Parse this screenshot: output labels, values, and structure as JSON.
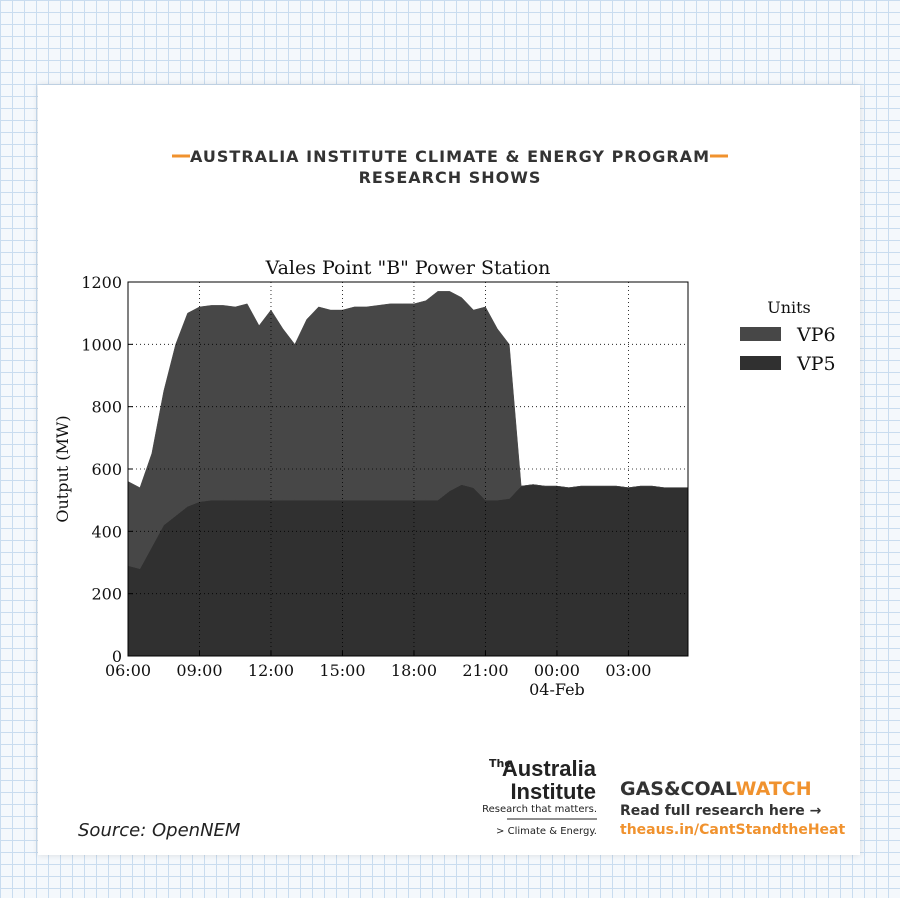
{
  "header": {
    "line1": "AUSTRALIA INSTITUTE CLIMATE & ENERGY PROGRAM",
    "line2": "RESEARCH SHOWS"
  },
  "chart_data": {
    "type": "stacked-area",
    "title": "Vales Point \"B\" Power Station",
    "y_label": "Output (MW)",
    "x": [
      "06:00",
      "06:30",
      "07:00",
      "07:30",
      "08:00",
      "08:30",
      "09:00",
      "09:30",
      "10:00",
      "10:30",
      "11:00",
      "11:30",
      "12:00",
      "12:30",
      "13:00",
      "13:30",
      "14:00",
      "14:30",
      "15:00",
      "15:30",
      "16:00",
      "16:30",
      "17:00",
      "17:30",
      "18:00",
      "18:30",
      "19:00",
      "19:30",
      "20:00",
      "20:30",
      "21:00",
      "21:30",
      "22:00",
      "22:30",
      "23:00",
      "23:30",
      "00:00",
      "00:30",
      "01:00",
      "01:30",
      "02:00",
      "02:30",
      "03:00",
      "03:30",
      "04:00",
      "04:30",
      "05:00",
      "05:30"
    ],
    "xticks": [
      "06:00",
      "09:00",
      "12:00",
      "15:00",
      "18:00",
      "21:00",
      "00:00",
      "03:00"
    ],
    "date_label": "04-Feb",
    "ylim": [
      0,
      1200
    ],
    "yticks": [
      0,
      200,
      400,
      600,
      800,
      1000,
      1200
    ],
    "grid": true,
    "legend_title": "Units",
    "legend": "right",
    "series": [
      {
        "name": "VP6",
        "color": "#474747",
        "values": [
          270,
          260,
          300,
          430,
          550,
          620,
          625,
          625,
          625,
          620,
          630,
          560,
          610,
          550,
          500,
          580,
          620,
          610,
          610,
          620,
          620,
          625,
          630,
          630,
          630,
          640,
          670,
          640,
          600,
          570,
          620,
          550,
          495,
          0,
          0,
          0,
          0,
          0,
          0,
          0,
          0,
          0,
          0,
          0,
          0,
          0,
          0,
          0
        ]
      },
      {
        "name": "VP5",
        "color": "#303030",
        "values": [
          290,
          280,
          350,
          420,
          450,
          480,
          495,
          500,
          500,
          500,
          500,
          500,
          500,
          500,
          500,
          500,
          500,
          500,
          500,
          500,
          500,
          500,
          500,
          500,
          500,
          500,
          500,
          530,
          550,
          540,
          500,
          500,
          505,
          545,
          550,
          545,
          545,
          540,
          545,
          545,
          545,
          545,
          540,
          545,
          545,
          540,
          540,
          540
        ]
      }
    ]
  },
  "footer": {
    "source": "Source: OpenNEM",
    "logo_the": "The",
    "logo_line1": "Australia",
    "logo_line2": "Institute",
    "logo_tagline": "Research that matters.",
    "logo_program": "> Climate & Energy.",
    "watch_part1": "GAS&COAL",
    "watch_part2": "WATCH",
    "read_more": "Read full research here →",
    "link": "theaus.in/CantStandtheHeat"
  }
}
